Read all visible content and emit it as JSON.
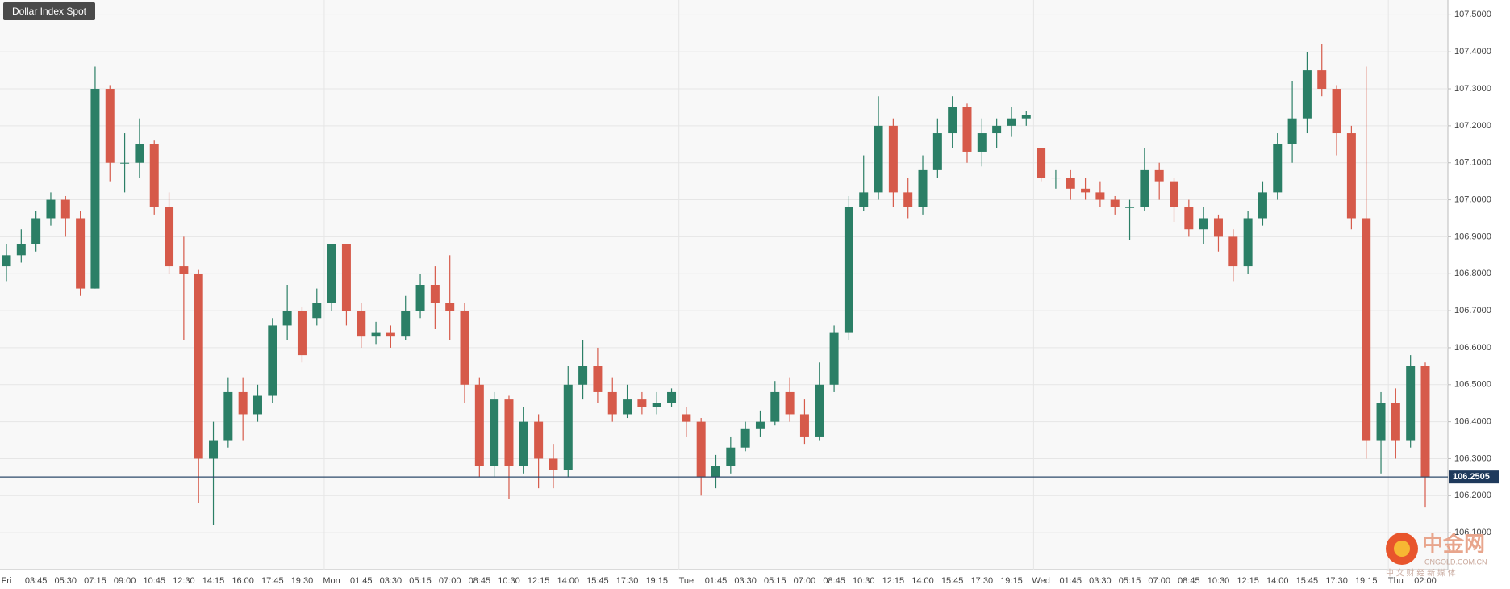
{
  "chart_data": {
    "type": "candlestick",
    "title": "Dollar Index Spot",
    "up_color": "#2b7f66",
    "down_color": "#d65a4a",
    "grid": true,
    "categories": [
      "Fri",
      null,
      "03:45",
      null,
      "05:30",
      null,
      "07:15",
      null,
      "09:00",
      null,
      "10:45",
      null,
      "12:30",
      null,
      "14:15",
      null,
      "16:00",
      null,
      "17:45",
      null,
      "19:30",
      null,
      "Mon",
      null,
      "01:45",
      null,
      "03:30",
      null,
      "05:15",
      null,
      "07:00",
      null,
      "08:45",
      null,
      "10:30",
      null,
      "12:15",
      null,
      "14:00",
      null,
      "15:45",
      null,
      "17:30",
      null,
      "19:15",
      null,
      "Tue",
      null,
      "01:45",
      null,
      "03:30",
      null,
      "05:15",
      null,
      "07:00",
      null,
      "08:45",
      null,
      "10:30",
      null,
      "12:15",
      null,
      "14:00",
      null,
      "15:45",
      null,
      "17:30",
      null,
      "19:15",
      null,
      "Wed",
      null,
      "01:45",
      null,
      "03:30",
      null,
      "05:15",
      null,
      "07:00",
      null,
      "08:45",
      null,
      "10:30",
      null,
      "12:15",
      null,
      "14:00",
      null,
      "15:45",
      null,
      "17:30",
      null,
      "19:15",
      null,
      "Thu",
      null,
      "02:00"
    ],
    "ohlc": [
      [
        106.82,
        106.88,
        106.78,
        106.85
      ],
      [
        106.85,
        106.92,
        106.83,
        106.88
      ],
      [
        106.88,
        106.97,
        106.86,
        106.95
      ],
      [
        106.95,
        107.02,
        106.93,
        107.0
      ],
      [
        107.0,
        107.01,
        106.9,
        106.95
      ],
      [
        106.95,
        106.97,
        106.74,
        106.76
      ],
      [
        106.76,
        107.36,
        106.76,
        107.3
      ],
      [
        107.3,
        107.31,
        107.05,
        107.1
      ],
      [
        107.1,
        107.18,
        107.02,
        107.1
      ],
      [
        107.1,
        107.22,
        107.06,
        107.15
      ],
      [
        107.15,
        107.16,
        106.96,
        106.98
      ],
      [
        106.98,
        107.02,
        106.8,
        106.82
      ],
      [
        106.82,
        106.9,
        106.62,
        106.8
      ],
      [
        106.8,
        106.81,
        106.18,
        106.3
      ],
      [
        106.3,
        106.4,
        106.12,
        106.35
      ],
      [
        106.35,
        106.52,
        106.33,
        106.48
      ],
      [
        106.48,
        106.52,
        106.35,
        106.42
      ],
      [
        106.42,
        106.5,
        106.4,
        106.47
      ],
      [
        106.47,
        106.68,
        106.45,
        106.66
      ],
      [
        106.66,
        106.77,
        106.62,
        106.7
      ],
      [
        106.7,
        106.71,
        106.56,
        106.58
      ],
      [
        106.68,
        106.76,
        106.66,
        106.72
      ],
      [
        106.72,
        106.88,
        106.7,
        106.88
      ],
      [
        106.88,
        106.88,
        106.66,
        106.7
      ],
      [
        106.7,
        106.72,
        106.6,
        106.63
      ],
      [
        106.63,
        106.67,
        106.61,
        106.64
      ],
      [
        106.64,
        106.66,
        106.6,
        106.63
      ],
      [
        106.63,
        106.74,
        106.62,
        106.7
      ],
      [
        106.7,
        106.8,
        106.68,
        106.77
      ],
      [
        106.77,
        106.82,
        106.65,
        106.72
      ],
      [
        106.72,
        106.85,
        106.62,
        106.7
      ],
      [
        106.7,
        106.72,
        106.45,
        106.5
      ],
      [
        106.5,
        106.52,
        106.25,
        106.28
      ],
      [
        106.28,
        106.48,
        106.25,
        106.46
      ],
      [
        106.46,
        106.47,
        106.19,
        106.28
      ],
      [
        106.28,
        106.44,
        106.26,
        106.4
      ],
      [
        106.4,
        106.42,
        106.22,
        106.3
      ],
      [
        106.3,
        106.34,
        106.22,
        106.27
      ],
      [
        106.27,
        106.55,
        106.25,
        106.5
      ],
      [
        106.5,
        106.62,
        106.46,
        106.55
      ],
      [
        106.55,
        106.6,
        106.45,
        106.48
      ],
      [
        106.48,
        106.52,
        106.4,
        106.42
      ],
      [
        106.42,
        106.5,
        106.41,
        106.46
      ],
      [
        106.46,
        106.48,
        106.42,
        106.44
      ],
      [
        106.44,
        106.48,
        106.42,
        106.45
      ],
      [
        106.45,
        106.49,
        106.44,
        106.48
      ],
      [
        106.42,
        106.44,
        106.36,
        106.4
      ],
      [
        106.4,
        106.41,
        106.2,
        106.25
      ],
      [
        106.25,
        106.31,
        106.22,
        106.28
      ],
      [
        106.28,
        106.36,
        106.26,
        106.33
      ],
      [
        106.33,
        106.4,
        106.32,
        106.38
      ],
      [
        106.38,
        106.43,
        106.36,
        106.4
      ],
      [
        106.4,
        106.51,
        106.39,
        106.48
      ],
      [
        106.48,
        106.52,
        106.4,
        106.42
      ],
      [
        106.42,
        106.46,
        106.34,
        106.36
      ],
      [
        106.36,
        106.56,
        106.35,
        106.5
      ],
      [
        106.5,
        106.66,
        106.48,
        106.64
      ],
      [
        106.64,
        107.01,
        106.62,
        106.98
      ],
      [
        106.98,
        107.12,
        106.97,
        107.02
      ],
      [
        107.02,
        107.28,
        107.0,
        107.2
      ],
      [
        107.2,
        107.22,
        106.98,
        107.02
      ],
      [
        107.02,
        107.06,
        106.95,
        106.98
      ],
      [
        106.98,
        107.12,
        106.96,
        107.08
      ],
      [
        107.08,
        107.22,
        107.06,
        107.18
      ],
      [
        107.18,
        107.28,
        107.14,
        107.25
      ],
      [
        107.25,
        107.26,
        107.1,
        107.13
      ],
      [
        107.13,
        107.22,
        107.09,
        107.18
      ],
      [
        107.18,
        107.22,
        107.14,
        107.2
      ],
      [
        107.2,
        107.25,
        107.17,
        107.22
      ],
      [
        107.22,
        107.24,
        107.2,
        107.23
      ],
      [
        107.14,
        107.14,
        107.05,
        107.06
      ],
      [
        107.06,
        107.08,
        107.03,
        107.06
      ],
      [
        107.06,
        107.08,
        107.0,
        107.03
      ],
      [
        107.03,
        107.06,
        107.0,
        107.02
      ],
      [
        107.02,
        107.05,
        106.98,
        107.0
      ],
      [
        107.0,
        107.01,
        106.96,
        106.98
      ],
      [
        106.98,
        107.0,
        106.89,
        106.98
      ],
      [
        106.98,
        107.14,
        106.97,
        107.08
      ],
      [
        107.08,
        107.1,
        107.0,
        107.05
      ],
      [
        107.05,
        107.06,
        106.94,
        106.98
      ],
      [
        106.98,
        107.0,
        106.9,
        106.92
      ],
      [
        106.92,
        106.98,
        106.88,
        106.95
      ],
      [
        106.95,
        106.96,
        106.86,
        106.9
      ],
      [
        106.9,
        106.92,
        106.78,
        106.82
      ],
      [
        106.82,
        106.97,
        106.8,
        106.95
      ],
      [
        106.95,
        107.05,
        106.93,
        107.02
      ],
      [
        107.02,
        107.18,
        107.0,
        107.15
      ],
      [
        107.15,
        107.32,
        107.1,
        107.22
      ],
      [
        107.22,
        107.4,
        107.18,
        107.35
      ],
      [
        107.35,
        107.42,
        107.28,
        107.3
      ],
      [
        107.3,
        107.31,
        107.12,
        107.18
      ],
      [
        107.18,
        107.2,
        106.92,
        106.95
      ],
      [
        106.95,
        107.36,
        106.3,
        106.35
      ],
      [
        106.35,
        106.48,
        106.26,
        106.45
      ],
      [
        106.45,
        106.49,
        106.3,
        106.35
      ],
      [
        106.35,
        106.58,
        106.33,
        106.55
      ],
      [
        106.55,
        106.56,
        106.17,
        106.25
      ]
    ],
    "ylim": [
      106.0,
      107.54
    ],
    "yticks": [
      {
        "value": 106.1,
        "label": "106.1000"
      },
      {
        "value": 106.2,
        "label": "106.2000"
      },
      {
        "value": 106.3,
        "label": "106.3000"
      },
      {
        "value": 106.4,
        "label": "106.4000"
      },
      {
        "value": 106.5,
        "label": "106.5000"
      },
      {
        "value": 106.6,
        "label": "106.6000"
      },
      {
        "value": 106.7,
        "label": "106.7000"
      },
      {
        "value": 106.8,
        "label": "106.8000"
      },
      {
        "value": 106.9,
        "label": "106.9000"
      },
      {
        "value": 107.0,
        "label": "107.0000"
      },
      {
        "value": 107.1,
        "label": "107.1000"
      },
      {
        "value": 107.2,
        "label": "107.2000"
      },
      {
        "value": 107.3,
        "label": "107.3000"
      },
      {
        "value": 107.4,
        "label": "107.4000"
      },
      {
        "value": 107.5,
        "label": "107.5000"
      }
    ],
    "last_price": {
      "value": 106.2505,
      "label": "106.2505"
    },
    "watermark": {
      "name": "中金网",
      "site": "CNGOLD.COM.CN",
      "tagline": "中 文 财 经 新 媒 体"
    }
  }
}
